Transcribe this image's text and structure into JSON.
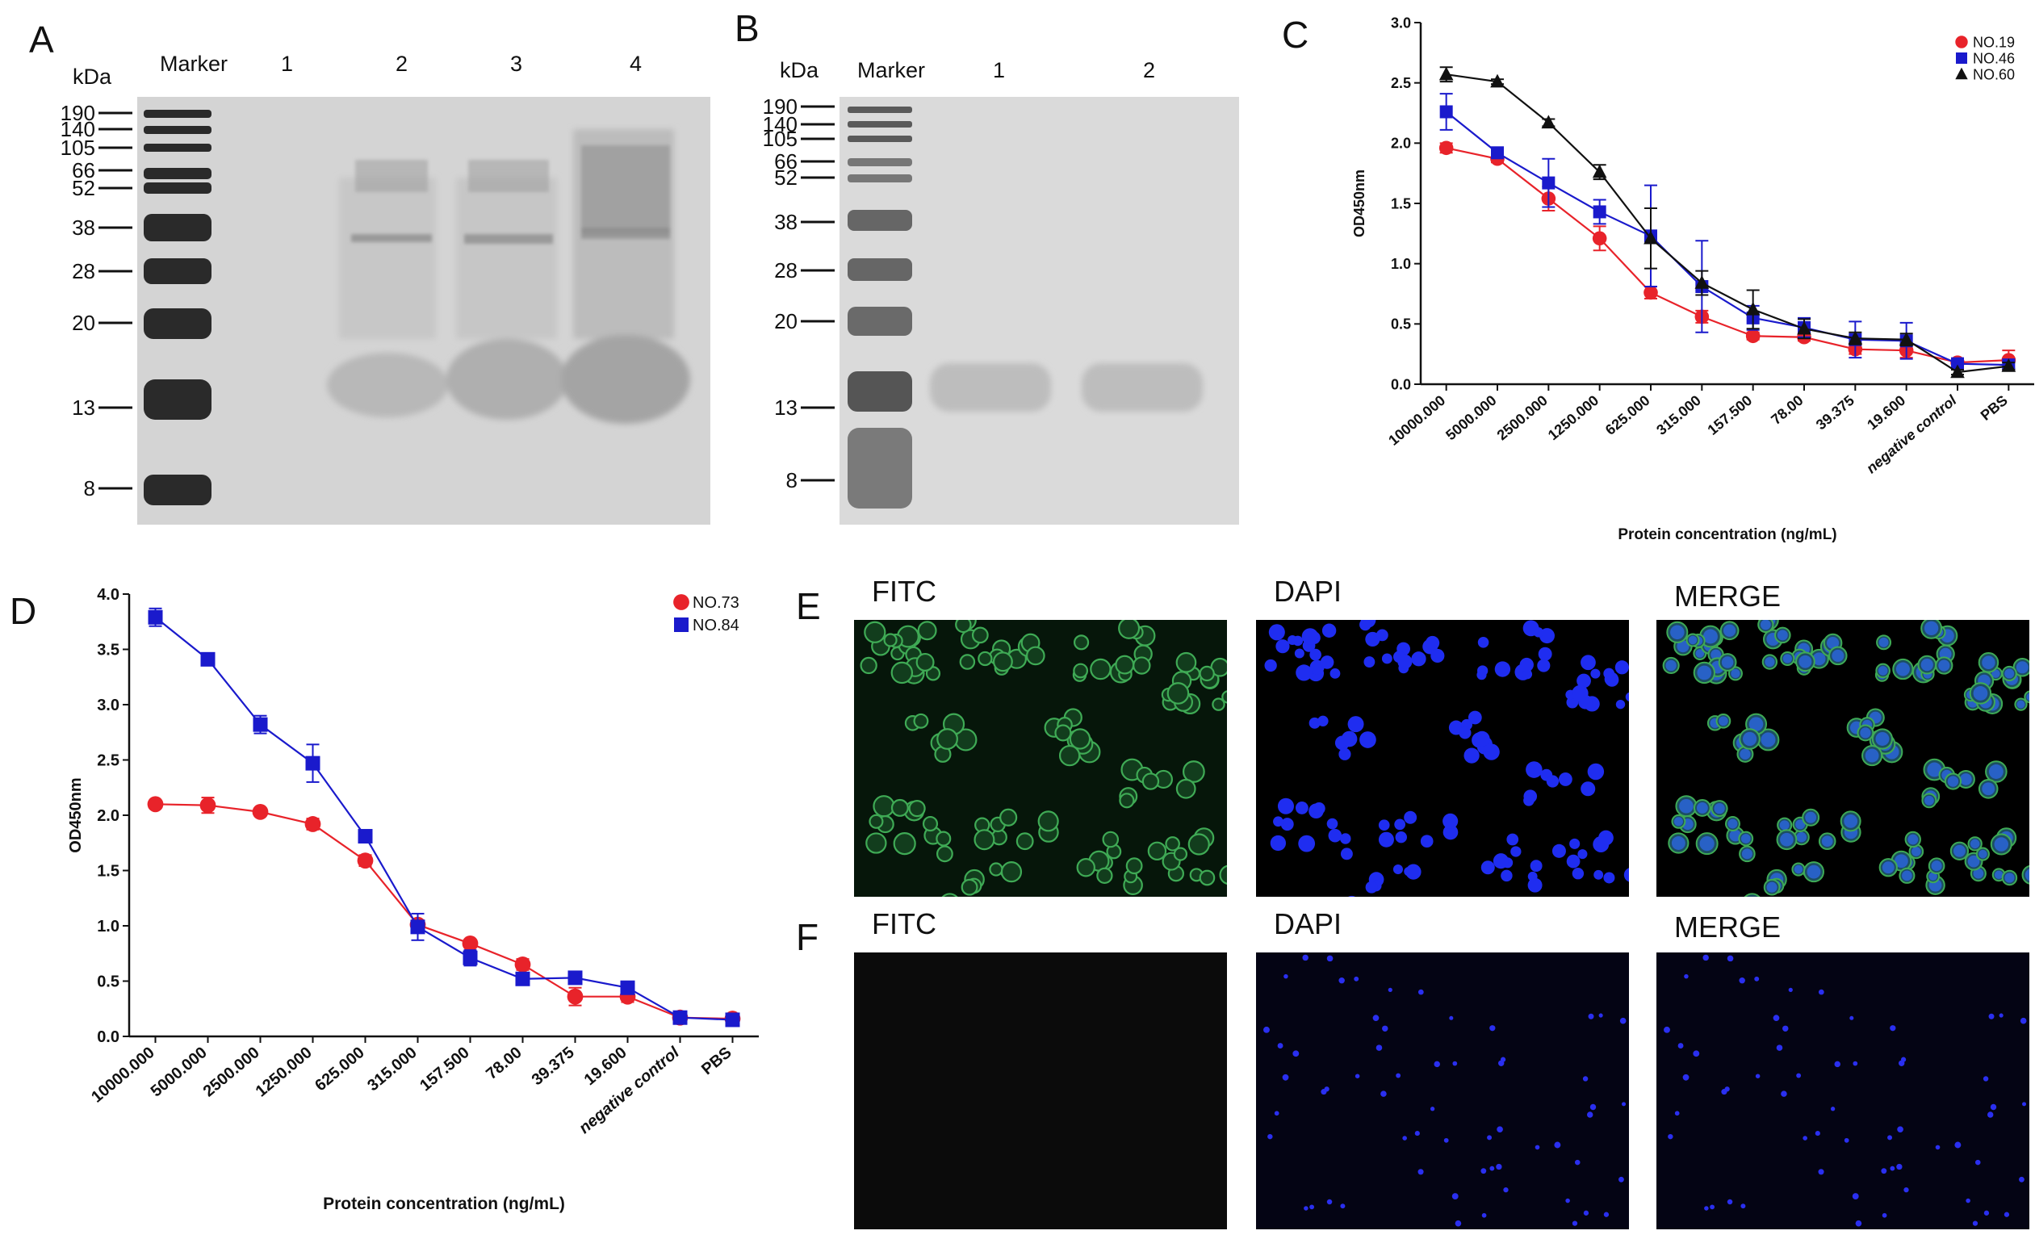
{
  "panels": {
    "A": {
      "letter": "A",
      "kda_label": "kDa",
      "marker_label": "Marker",
      "lane_labels": [
        "1",
        "2",
        "3",
        "4"
      ],
      "mw_labels": [
        "190",
        "140",
        "105",
        "66",
        "52",
        "38",
        "28",
        "20",
        "13",
        "8"
      ]
    },
    "B": {
      "letter": "B",
      "kda_label": "kDa",
      "marker_label": "Marker",
      "lane_labels": [
        "1",
        "2"
      ],
      "mw_labels": [
        "190",
        "140",
        "105",
        "66",
        "52",
        "38",
        "28",
        "20",
        "13",
        "8"
      ]
    },
    "C": {
      "letter": "C"
    },
    "D": {
      "letter": "D"
    },
    "E": {
      "letter": "E",
      "channels": [
        "FITC",
        "DAPI",
        "MERGE"
      ]
    },
    "F": {
      "letter": "F",
      "channels": [
        "FITC",
        "DAPI",
        "MERGE"
      ]
    }
  },
  "colors": {
    "red": "#e8232a",
    "blue": "#1a1acc",
    "black": "#111111",
    "gel_bg": "#d4d4d4",
    "fitc_green": "#3faa55",
    "dapi_blue": "#1f2df0"
  },
  "chart_data": [
    {
      "panel": "C",
      "type": "line",
      "categories": [
        "10000.000",
        "5000.000",
        "2500.000",
        "1250.000",
        "625.000",
        "315.000",
        "157.500",
        "78.00",
        "39.375",
        "19.600",
        "negative control",
        "PBS"
      ],
      "xlabel": "Protein concentration (ng/mL)",
      "ylabel": "OD450nm",
      "ylim": [
        0,
        3.0
      ],
      "yticks": [
        "0.0",
        "0.5",
        "1.0",
        "1.5",
        "2.0",
        "2.5",
        "3.0"
      ],
      "legend_position": "top-right",
      "series": [
        {
          "name": "NO.19",
          "marker": "circle",
          "color": "#e8232a",
          "values": [
            1.96,
            1.87,
            1.54,
            1.21,
            0.76,
            0.56,
            0.4,
            0.39,
            0.29,
            0.28,
            0.18,
            0.2
          ],
          "errors": [
            0.04,
            0.03,
            0.1,
            0.1,
            0.05,
            0.05,
            0.03,
            0.03,
            0.04,
            0.06,
            0.03,
            0.08
          ]
        },
        {
          "name": "NO.46",
          "marker": "square",
          "color": "#1a1acc",
          "values": [
            2.26,
            1.92,
            1.67,
            1.43,
            1.23,
            0.81,
            0.55,
            0.47,
            0.37,
            0.36,
            0.17,
            0.16
          ],
          "errors": [
            0.15,
            0.03,
            0.2,
            0.1,
            0.42,
            0.38,
            0.1,
            0.08,
            0.15,
            0.15,
            0.03,
            0.03
          ]
        },
        {
          "name": "NO.60",
          "marker": "triangle",
          "color": "#111111",
          "values": [
            2.57,
            2.51,
            2.17,
            1.76,
            1.21,
            0.84,
            0.62,
            0.46,
            0.38,
            0.37,
            0.1,
            0.15
          ],
          "errors": [
            0.06,
            0.02,
            0.03,
            0.06,
            0.25,
            0.1,
            0.16,
            0.08,
            0.05,
            0.05,
            0.02,
            0.03
          ]
        }
      ]
    },
    {
      "panel": "D",
      "type": "line",
      "categories": [
        "10000.000",
        "5000.000",
        "2500.000",
        "1250.000",
        "625.000",
        "315.000",
        "157.500",
        "78.00",
        "39.375",
        "19.600",
        "negative control",
        "PBS"
      ],
      "xlabel": "Protein concentration (ng/mL)",
      "ylabel": "OD450nm",
      "ylim": [
        0,
        4.0
      ],
      "yticks": [
        "0.0",
        "0.5",
        "1.0",
        "1.5",
        "2.0",
        "2.5",
        "3.0",
        "3.5",
        "4.0"
      ],
      "legend_position": "top-right",
      "series": [
        {
          "name": "NO.73",
          "marker": "circle",
          "color": "#e8232a",
          "values": [
            2.1,
            2.09,
            2.03,
            1.92,
            1.59,
            1.01,
            0.84,
            0.65,
            0.36,
            0.36,
            0.17,
            0.16
          ],
          "errors": [
            0.03,
            0.07,
            0.03,
            0.05,
            0.05,
            0.04,
            0.03,
            0.05,
            0.08,
            0.05,
            0.02,
            0.02
          ]
        },
        {
          "name": "NO.84",
          "marker": "square",
          "color": "#1a1acc",
          "values": [
            3.79,
            3.41,
            2.82,
            2.47,
            1.81,
            0.99,
            0.71,
            0.52,
            0.53,
            0.44,
            0.17,
            0.15
          ],
          "errors": [
            0.08,
            0.03,
            0.08,
            0.17,
            0.04,
            0.12,
            0.07,
            0.05,
            0.03,
            0.03,
            0.02,
            0.02
          ]
        }
      ]
    }
  ]
}
